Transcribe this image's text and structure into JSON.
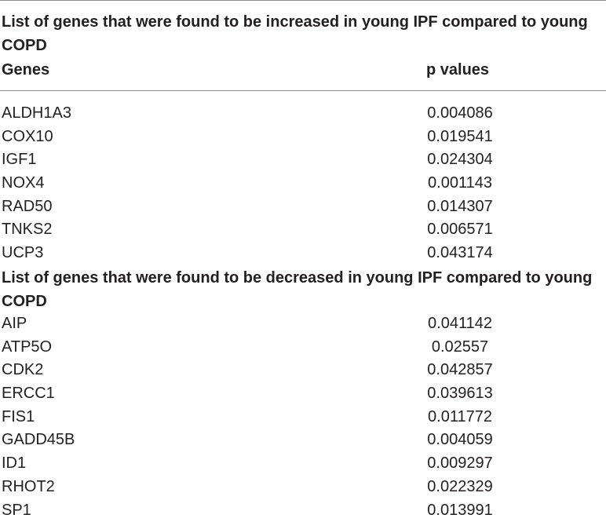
{
  "table": {
    "sections": [
      {
        "title": "List of genes that were found to be increased in young IPF compared to young COPD",
        "rows": [
          {
            "gene": "ALDH1A3",
            "p": "0.004086"
          },
          {
            "gene": "COX10",
            "p": "0.019541"
          },
          {
            "gene": "IGF1",
            "p": "0.024304"
          },
          {
            "gene": "NOX4",
            "p": "0.001143"
          },
          {
            "gene": "RAD50",
            "p": "0.014307"
          },
          {
            "gene": "TNKS2",
            "p": "0.006571"
          },
          {
            "gene": "UCP3",
            "p": "0.043174"
          }
        ]
      },
      {
        "title": "List of genes that were found to be decreased in young IPF compared to young COPD",
        "rows": [
          {
            "gene": "AIP",
            "p": "0.041142"
          },
          {
            "gene": "ATP5O",
            "p": "0.02557"
          },
          {
            "gene": "CDK2",
            "p": "0.042857"
          },
          {
            "gene": "ERCC1",
            "p": "0.039613"
          },
          {
            "gene": "FIS1",
            "p": "0.011772"
          },
          {
            "gene": "GADD45B",
            "p": "0.004059"
          },
          {
            "gene": "ID1",
            "p": "0.009297"
          },
          {
            "gene": "RHOT2",
            "p": "0.022329"
          },
          {
            "gene": "SP1",
            "p": "0.013991"
          }
        ]
      }
    ],
    "columns": {
      "genes": "Genes",
      "p_values": "p values"
    }
  }
}
